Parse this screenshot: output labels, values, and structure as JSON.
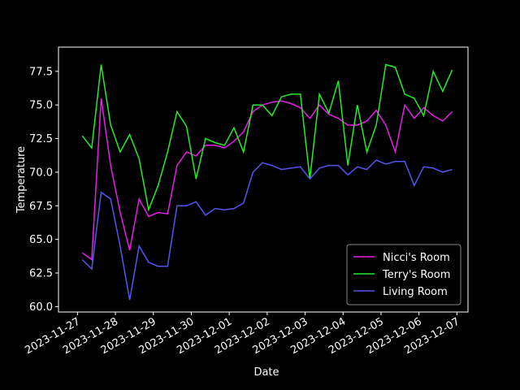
{
  "chart_data": {
    "type": "line",
    "xlabel": "Date",
    "ylabel": "Temperature",
    "x": [
      "2023-11-27T03:00",
      "2023-11-27T09:00",
      "2023-11-27T15:00",
      "2023-11-27T21:00",
      "2023-11-28T03:00",
      "2023-11-28T09:00",
      "2023-11-28T15:00",
      "2023-11-28T21:00",
      "2023-11-29T03:00",
      "2023-11-29T09:00",
      "2023-11-29T15:00",
      "2023-11-29T21:00",
      "2023-11-30T03:00",
      "2023-11-30T09:00",
      "2023-11-30T15:00",
      "2023-11-30T21:00",
      "2023-12-01T03:00",
      "2023-12-01T09:00",
      "2023-12-01T15:00",
      "2023-12-01T21:00",
      "2023-12-02T03:00",
      "2023-12-02T09:00",
      "2023-12-02T15:00",
      "2023-12-02T21:00",
      "2023-12-03T03:00",
      "2023-12-03T09:00",
      "2023-12-03T15:00",
      "2023-12-03T21:00",
      "2023-12-04T03:00",
      "2023-12-04T09:00",
      "2023-12-04T15:00",
      "2023-12-04T21:00",
      "2023-12-05T03:00",
      "2023-12-05T09:00",
      "2023-12-05T15:00",
      "2023-12-05T21:00",
      "2023-12-06T03:00",
      "2023-12-06T09:00",
      "2023-12-06T15:00",
      "2023-12-06T21:00"
    ],
    "series": [
      {
        "name": "Nicci's Room",
        "color": "#e81ee8",
        "values": [
          64.0,
          63.5,
          75.5,
          70.5,
          67.0,
          64.2,
          68.0,
          66.7,
          67.0,
          66.9,
          70.5,
          71.5,
          71.2,
          72.0,
          72.0,
          71.8,
          72.3,
          73.0,
          74.5,
          75.0,
          75.2,
          75.3,
          75.1,
          74.8,
          74.0,
          75.0,
          74.3,
          74.0,
          73.5,
          73.5,
          73.8,
          74.6,
          73.5,
          71.5,
          75.0,
          74.0,
          74.8,
          74.2,
          73.8,
          74.5
        ]
      },
      {
        "name": "Terry's Room",
        "color": "#22ee22",
        "values": [
          72.7,
          71.8,
          78.0,
          73.5,
          71.5,
          72.8,
          71.0,
          67.2,
          69.0,
          71.5,
          74.5,
          73.4,
          69.5,
          72.5,
          72.2,
          72.0,
          73.3,
          71.5,
          75.0,
          75.0,
          74.2,
          75.6,
          75.8,
          75.8,
          69.5,
          75.8,
          74.4,
          76.8,
          70.5,
          75.0,
          71.5,
          73.5,
          78.0,
          77.8,
          75.8,
          75.5,
          74.2,
          77.5,
          76.0,
          77.6
        ]
      },
      {
        "name": "Living Room",
        "color": "#5555ee",
        "values": [
          63.5,
          62.8,
          68.5,
          68.0,
          64.5,
          60.5,
          64.5,
          63.3,
          63.0,
          63.0,
          67.5,
          67.5,
          67.8,
          66.8,
          67.3,
          67.2,
          67.3,
          67.7,
          70.0,
          70.7,
          70.5,
          70.2,
          70.3,
          70.4,
          69.5,
          70.3,
          70.5,
          70.5,
          69.8,
          70.4,
          70.2,
          70.9,
          70.6,
          70.8,
          70.8,
          69.0,
          70.4,
          70.3,
          70.0,
          70.2
        ]
      }
    ],
    "xlim": [
      "2023-11-26T12:00",
      "2023-12-07T07:00"
    ],
    "xticks": [
      "2023-11-27",
      "2023-11-28",
      "2023-11-29",
      "2023-11-30",
      "2023-12-01",
      "2023-12-02",
      "2023-12-03",
      "2023-12-04",
      "2023-12-05",
      "2023-12-06",
      "2023-12-07"
    ],
    "ylim": [
      59.6,
      79.3
    ],
    "yticks": [
      {
        "value": 60,
        "label": "60.0"
      },
      62.5,
      {
        "value": 65,
        "label": "65.0"
      },
      67.5,
      {
        "value": 70,
        "label": "70.0"
      },
      72.5,
      {
        "value": 75,
        "label": "75.0"
      },
      77.5
    ],
    "legend": "lower right"
  }
}
